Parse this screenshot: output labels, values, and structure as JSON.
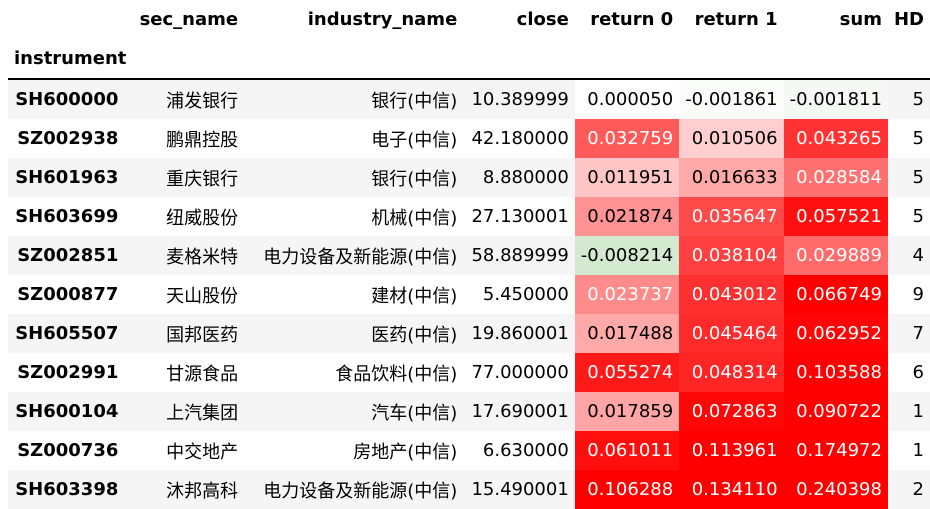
{
  "columns": {
    "sec_name": "sec_name",
    "industry_name": "industry_name",
    "close": "close",
    "return0": "return 0",
    "return1": "return 1",
    "sum": "sum",
    "hd": "HD",
    "index": "instrument"
  },
  "rows": [
    {
      "instrument": "SH600000",
      "sec_name": "浦发银行",
      "industry_name": "银行(中信)",
      "close": "10.389999",
      "r0": "0.000050",
      "r1": "-0.001861",
      "sum": "-0.001811",
      "hd": "5",
      "r0_bg": "#ffffff",
      "r0_fg": "#000000",
      "r1_bg": "#f9fcf8",
      "r1_fg": "#000000",
      "sum_bg": "#f4f9f3",
      "sum_fg": "#000000"
    },
    {
      "instrument": "SZ002938",
      "sec_name": "鹏鼎控股",
      "industry_name": "电子(中信)",
      "close": "42.180000",
      "r0": "0.032759",
      "r1": "0.010506",
      "sum": "0.043265",
      "hd": "5",
      "r0_bg": "#ff5a5a",
      "r0_fg": "#ffffff",
      "r1_bg": "#ffcfcf",
      "r1_fg": "#000000",
      "sum_bg": "#ff3333",
      "sum_fg": "#ffffff"
    },
    {
      "instrument": "SH601963",
      "sec_name": "重庆银行",
      "industry_name": "银行(中信)",
      "close": "8.880000",
      "r0": "0.011951",
      "r1": "0.016633",
      "sum": "0.028584",
      "hd": "5",
      "r0_bg": "#ffc5c5",
      "r0_fg": "#000000",
      "r1_bg": "#ffa9a9",
      "r1_fg": "#000000",
      "sum_bg": "#ff7070",
      "sum_fg": "#ffffff"
    },
    {
      "instrument": "SH603699",
      "sec_name": "纽威股份",
      "industry_name": "机械(中信)",
      "close": "27.130001",
      "r0": "0.021874",
      "r1": "0.035647",
      "sum": "0.057521",
      "hd": "5",
      "r0_bg": "#ff9393",
      "r0_fg": "#000000",
      "r1_bg": "#ff4a4a",
      "r1_fg": "#ffffff",
      "sum_bg": "#ff1010",
      "sum_fg": "#ffffff"
    },
    {
      "instrument": "SZ002851",
      "sec_name": "麦格米特",
      "industry_name": "电力设备及新能源(中信)",
      "close": "58.889999",
      "r0": "-0.008214",
      "r1": "0.038104",
      "sum": "0.029889",
      "hd": "4",
      "r0_bg": "#d4ead0",
      "r0_fg": "#000000",
      "r1_bg": "#ff4040",
      "r1_fg": "#ffffff",
      "sum_bg": "#ff6b6b",
      "sum_fg": "#ffffff"
    },
    {
      "instrument": "SZ000877",
      "sec_name": "天山股份",
      "industry_name": "建材(中信)",
      "close": "5.450000",
      "r0": "0.023737",
      "r1": "0.043012",
      "sum": "0.066749",
      "hd": "9",
      "r0_bg": "#ff8b8b",
      "r0_fg": "#ffffff",
      "r1_bg": "#ff3030",
      "r1_fg": "#ffffff",
      "sum_bg": "#ff0000",
      "sum_fg": "#ffffff"
    },
    {
      "instrument": "SH605507",
      "sec_name": "国邦医药",
      "industry_name": "医药(中信)",
      "close": "19.860001",
      "r0": "0.017488",
      "r1": "0.045464",
      "sum": "0.062952",
      "hd": "7",
      "r0_bg": "#ffa9a9",
      "r0_fg": "#000000",
      "r1_bg": "#ff2a2a",
      "r1_fg": "#ffffff",
      "sum_bg": "#ff0505",
      "sum_fg": "#ffffff"
    },
    {
      "instrument": "SZ002991",
      "sec_name": "甘源食品",
      "industry_name": "食品饮料(中信)",
      "close": "77.000000",
      "r0": "0.055274",
      "r1": "0.048314",
      "sum": "0.103588",
      "hd": "6",
      "r0_bg": "#ff1a1a",
      "r0_fg": "#ffffff",
      "r1_bg": "#ff2525",
      "r1_fg": "#ffffff",
      "sum_bg": "#ff0000",
      "sum_fg": "#ffffff"
    },
    {
      "instrument": "SH600104",
      "sec_name": "上汽集团",
      "industry_name": "汽车(中信)",
      "close": "17.690001",
      "r0": "0.017859",
      "r1": "0.072863",
      "sum": "0.090722",
      "hd": "1",
      "r0_bg": "#ffa5a5",
      "r0_fg": "#000000",
      "r1_bg": "#ff0707",
      "r1_fg": "#ffffff",
      "sum_bg": "#ff0000",
      "sum_fg": "#ffffff"
    },
    {
      "instrument": "SZ000736",
      "sec_name": "中交地产",
      "industry_name": "房地产(中信)",
      "close": "6.630000",
      "r0": "0.061011",
      "r1": "0.113961",
      "sum": "0.174972",
      "hd": "1",
      "r0_bg": "#ff0e0e",
      "r0_fg": "#ffffff",
      "r1_bg": "#ff0000",
      "r1_fg": "#ffffff",
      "sum_bg": "#ff0000",
      "sum_fg": "#ffffff"
    },
    {
      "instrument": "SH603398",
      "sec_name": "沐邦高科",
      "industry_name": "电力设备及新能源(中信)",
      "close": "15.490001",
      "r0": "0.106288",
      "r1": "0.134110",
      "sum": "0.240398",
      "hd": "2",
      "r0_bg": "#ff0000",
      "r0_fg": "#ffffff",
      "r1_bg": "#ff0000",
      "r1_fg": "#ffffff",
      "sum_bg": "#ff0000",
      "sum_fg": "#ffffff"
    }
  ]
}
